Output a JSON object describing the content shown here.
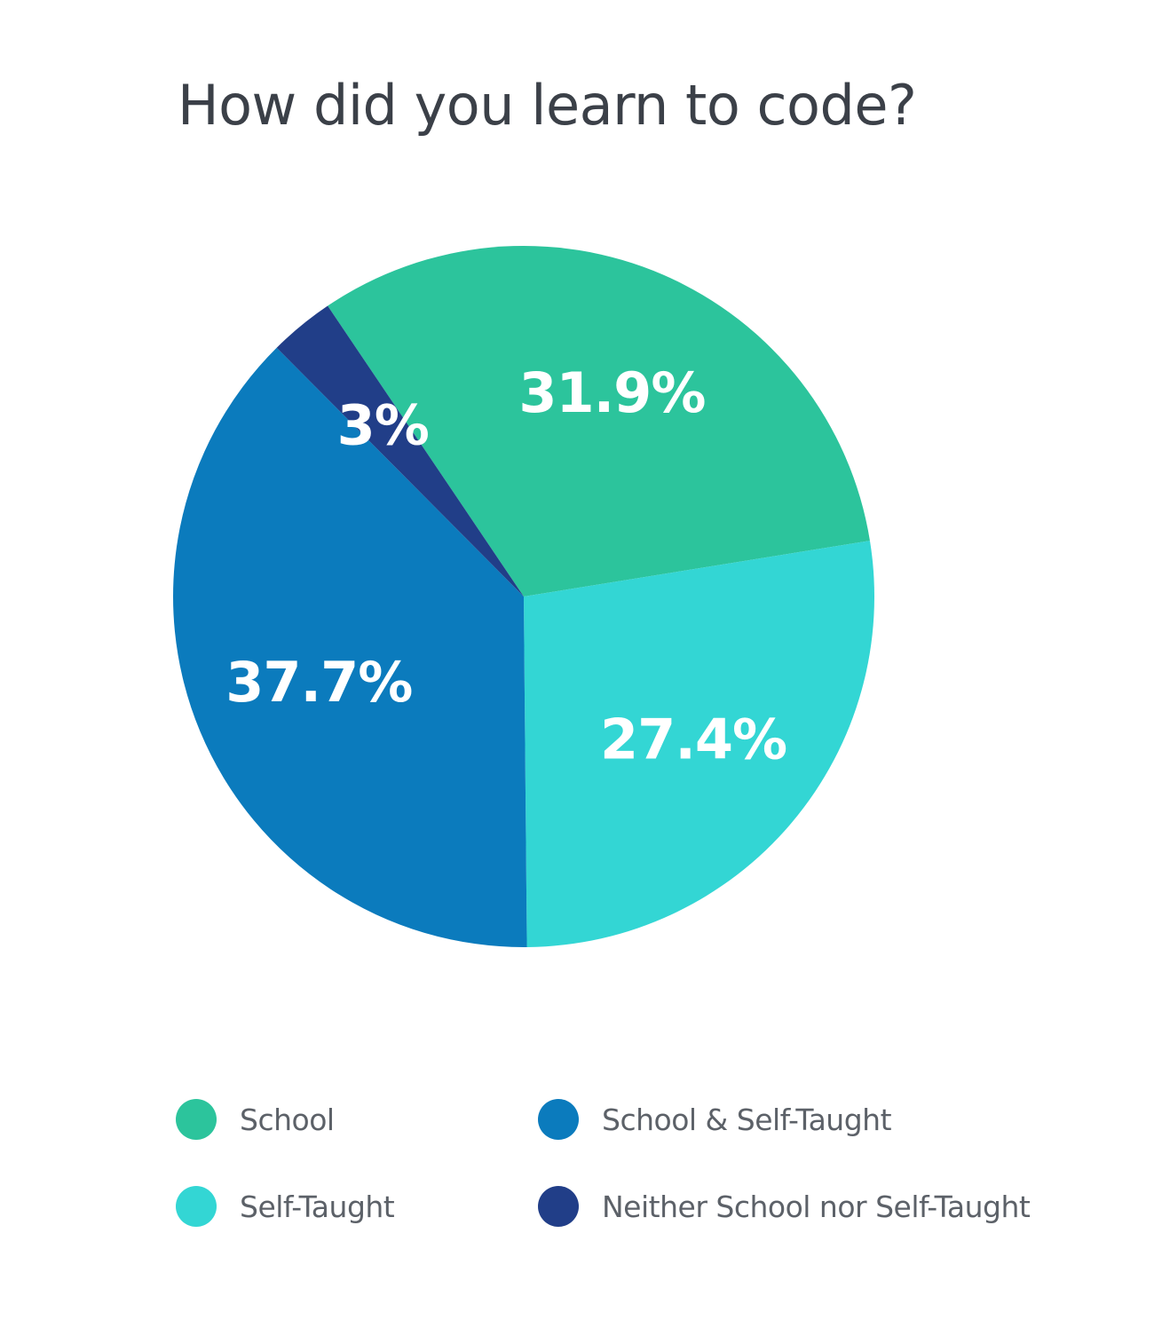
{
  "chart_data": {
    "type": "pie",
    "title": "How did you learn to code?",
    "categories": [
      "School",
      "Self-Taught",
      "School & Self-Taught",
      "Neither School nor Self-Taught"
    ],
    "values": [
      31.9,
      27.4,
      37.7,
      3
    ],
    "labels": [
      "31.9%",
      "27.4%",
      "37.7%",
      "3%"
    ],
    "colors": [
      "#2cc49c",
      "#33d6d4",
      "#0b7bbd",
      "#213e88"
    ],
    "legend": {
      "placement": "bottom",
      "items": [
        {
          "label": "School",
          "color": "#2cc49c"
        },
        {
          "label": "School & Self-Taught",
          "color": "#0b7bbd"
        },
        {
          "label": "Self-Taught",
          "color": "#33d6d4"
        },
        {
          "label": "Neither School nor Self-Taught",
          "color": "#213e88"
        }
      ]
    }
  }
}
